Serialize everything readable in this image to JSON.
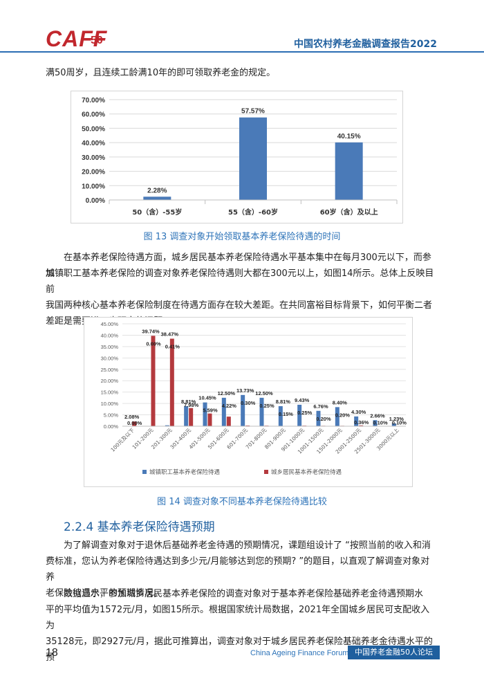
{
  "header": {
    "logo_text": "CAFF",
    "logo_number": "50",
    "report_title": "中国农村养老金融调查报告2022"
  },
  "colors": {
    "accent": "#1f5f9e",
    "blue_bar": "#4a7ab8",
    "red_bar": "#b43a3e",
    "logo_red": "#c1272d"
  },
  "body": {
    "para_top": "满50周岁，且连续工龄满10年的即可领取养老金的规定。",
    "fig13_caption": "图 13  调查对象开始领取基本养老保险待遇的时间",
    "para_middle": [
      "在基本养老保险待遇方面，城乡居民基本养老保险待遇水平基本集中在每月300元以下，而参加",
      "城镇职工基本养老保险的调查对象养老保险待遇则大都在300元以上，如图14所示。总体上反映目前",
      "我国两种核心基本养老保险制度在待遇方面存在较大差距。在共同富裕目标背景下，如何平衡二者",
      "差距是需要进一步研究的问题。"
    ],
    "fig14_caption": "图 14  调查对象不同基本养老保险待遇比较",
    "section_title": "2.2.4 基本养老保险待遇预期",
    "para_bottom1": [
      "为了解调查对象对于退休后基础养老金待遇的预期情况，课题组设计了 “按照当前的收入和消",
      "费标准，您认为养老保险待遇达到多少元/月能够达到您的预期?  ”的题目，以直观了解调查对象对养",
      "老保险待遇水平的预期情况。"
    ],
    "para_bottom2": [
      "数据显示，参加城乡居民基本养老保险的调查对象对于基本养老保险基础养老金待遇预期水",
      "平的平均值为1572元/月，如图15所示。根据国家统计局数据，2021年全国城乡居民可支配收入为",
      "35128元，即2927元/月，据此可推算出，调查对象对于城乡居民养老保险基础养老金待遇水平的预"
    ]
  },
  "footer": {
    "page_number": "18",
    "forum_en": "China Ageing Finance Forum",
    "forum_cn": "中国养老金融50人论坛"
  },
  "chart_data": [
    {
      "type": "bar",
      "categories": [
        "50（含）-55岁",
        "55（含）-60岁",
        "60岁（含）及以上"
      ],
      "values": [
        2.28,
        57.57,
        40.15
      ],
      "data_labels": [
        "2.28%",
        "57.57%",
        "40.15%"
      ],
      "ylim": [
        0,
        70
      ],
      "yticks": [
        "0.00%",
        "10.00%",
        "20.00%",
        "30.00%",
        "40.00%",
        "50.00%",
        "60.00%",
        "70.00%"
      ],
      "grid": true
    },
    {
      "type": "bar",
      "categories": [
        "100元及以下",
        "101-200元",
        "201-300元",
        "301-400元",
        "401-500元",
        "501-600元",
        "601-700元",
        "701-800元",
        "801-900元",
        "901-1000元",
        "1001-1500元",
        "1501-2000元",
        "2001-2500元",
        "2501-3000元",
        "3000元以上"
      ],
      "series": [
        {
          "name": "城镇职工基本养老保险待遇",
          "values": [
            0.0,
            0.0,
            0.41,
            8.81,
            10.45,
            12.5,
            13.73,
            12.5,
            8.81,
            9.43,
            6.76,
            8.4,
            4.3,
            2.66,
            1.23
          ],
          "labels": [
            "0.00%",
            "0.00%",
            "0.41%",
            "8.81%",
            "10.45%",
            "12.50%",
            "13.73%",
            "12.50%",
            "8.81%",
            "9.43%",
            "6.76%",
            "8.40%",
            "4.30%",
            "2.66%",
            "1.23%"
          ]
        },
        {
          "name": "城乡居民基本养老保险待遇",
          "values": [
            2.08,
            39.74,
            38.47,
            7.98,
            5.59,
            4.22,
            0.3,
            0.25,
            0.15,
            0.25,
            0.2,
            0.2,
            0.36,
            0.1,
            0.1
          ],
          "labels": [
            "2.08%",
            "39.74%",
            "38.47%",
            "7.98%",
            "5.59%",
            "4.22%",
            "0.30%",
            "0.25%",
            "0.15%",
            "0.25%",
            "0.20%",
            "0.20%",
            "0.36%",
            "0.10%",
            "0.10%"
          ]
        }
      ],
      "ylim": [
        0,
        45
      ],
      "yticks": [
        "0.00%",
        "5.00%",
        "10.00%",
        "15.00%",
        "20.00%",
        "25.00%",
        "30.00%",
        "35.00%",
        "40.00%",
        "45.00%"
      ],
      "legend": "bottom",
      "grid": true
    }
  ]
}
